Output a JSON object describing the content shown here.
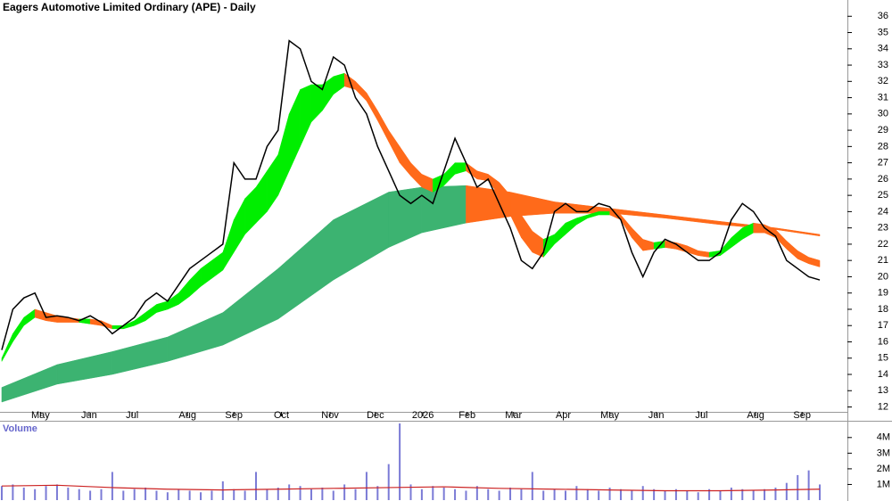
{
  "chart_data": [
    {
      "type": "line",
      "title": "Eagers Automotive Limited Ordinary (APE) - Daily",
      "x": [
        0,
        1,
        2,
        3,
        4,
        5,
        6,
        7,
        8,
        9,
        10,
        11,
        12,
        13,
        14,
        15,
        16,
        17,
        18,
        19,
        20,
        21,
        22,
        23,
        24,
        25,
        26,
        27,
        28,
        29,
        30,
        31,
        32,
        33,
        34,
        35,
        36,
        37,
        38,
        39,
        40,
        41,
        42,
        43,
        44,
        45,
        46,
        47,
        48,
        49,
        50,
        51,
        52,
        53,
        54,
        55,
        56,
        57,
        58,
        59,
        60,
        61,
        62,
        63,
        64,
        65,
        66,
        67,
        68,
        69,
        70,
        71,
        72,
        73,
        74
      ],
      "xlim": [
        -0.16,
        76.5
      ],
      "xticks": [
        {
          "value": 3.5,
          "label": "May"
        },
        {
          "value": 7.9,
          "label": "Jun"
        },
        {
          "value": 11.8,
          "label": "Jul"
        },
        {
          "value": 16.8,
          "label": "Aug"
        },
        {
          "value": 21,
          "label": "Sep"
        },
        {
          "value": 25.3,
          "label": "Oct"
        },
        {
          "value": 29.7,
          "label": "Nov"
        },
        {
          "value": 33.8,
          "label": "Dec"
        },
        {
          "value": 38.1,
          "label": "2026"
        },
        {
          "value": 42.1,
          "label": "Feb"
        },
        {
          "value": 46.3,
          "label": "Mar"
        },
        {
          "value": 50.8,
          "label": "Apr"
        },
        {
          "value": 55,
          "label": "May"
        },
        {
          "value": 59.2,
          "label": "Jun"
        },
        {
          "value": 63.3,
          "label": "Jul"
        },
        {
          "value": 68.2,
          "label": "Aug"
        },
        {
          "value": 72.4,
          "label": "Sep"
        }
      ],
      "ylim": [
        11.7,
        37
      ],
      "yticks": [
        12,
        13,
        14,
        15,
        16,
        17,
        18,
        19,
        20,
        21,
        22,
        23,
        24,
        25,
        26,
        27,
        28,
        29,
        30,
        31,
        32,
        33,
        34,
        35,
        36
      ],
      "series": [
        {
          "color": "#000000",
          "values": [
            15.5,
            18,
            18.7,
            19,
            17.5,
            17.6,
            17.5,
            17.3,
            17.6,
            17.2,
            16.5,
            17,
            17.5,
            18.5,
            19,
            18.5,
            19.5,
            20.5,
            21,
            21.5,
            22,
            27,
            26,
            26,
            28,
            29,
            34.5,
            34,
            32,
            31.5,
            33.5,
            33,
            31,
            30,
            28,
            26.5,
            25,
            24.5,
            25,
            24.5,
            26.5,
            28.5,
            27,
            25.5,
            26,
            24.5,
            23,
            21,
            20.5,
            21.5,
            24,
            24.5,
            24,
            24,
            24.5,
            24.3,
            23.5,
            21.5,
            20,
            21.5,
            22.3,
            22,
            21.5,
            21,
            21,
            21.5,
            23.5,
            24.5,
            24,
            23,
            22.5,
            21,
            20.5,
            20,
            19.8
          ]
        }
      ],
      "bands": [
        {
          "up_color": "#3cb371",
          "down_color": "#ff6a1a",
          "x": [
            0,
            5,
            10,
            15,
            20,
            25,
            30,
            35,
            38,
            42,
            46,
            50,
            55,
            60,
            65,
            70,
            74
          ],
          "upper": [
            13.2,
            14.6,
            15.4,
            16.3,
            17.8,
            20.5,
            23.5,
            25.2,
            25.5,
            25.6,
            25.2,
            24.6,
            24.2,
            23.8,
            23.4,
            23,
            22.6
          ],
          "lower": [
            12.3,
            13.4,
            14,
            14.8,
            15.8,
            17.4,
            19.8,
            21.8,
            22.7,
            23.3,
            23.7,
            23.9,
            23.9,
            23.6,
            23.2,
            22.9,
            22.5
          ]
        },
        {
          "up_color": "#00ee00",
          "down_color": "#ff6a1a",
          "x": [
            0,
            1,
            2,
            3,
            4,
            5,
            6,
            7,
            8,
            9,
            10,
            11,
            12,
            13,
            14,
            15,
            16,
            17,
            18,
            19,
            20,
            21,
            22,
            23,
            24,
            25,
            26,
            27,
            28,
            29,
            30,
            31,
            32,
            33,
            34,
            35,
            36,
            37,
            38,
            39,
            40,
            41,
            42,
            43,
            44,
            45,
            46,
            47,
            48,
            49,
            50,
            51,
            52,
            53,
            54,
            55,
            56,
            57,
            58,
            59,
            60,
            61,
            62,
            63,
            64,
            65,
            66,
            67,
            68,
            69,
            70,
            71,
            72,
            73,
            74
          ],
          "upper": [
            15,
            16.5,
            17.5,
            18,
            17.8,
            17.6,
            17.5,
            17.4,
            17.4,
            17.3,
            17,
            17,
            17.3,
            17.8,
            18.3,
            18.5,
            19,
            19.8,
            20.5,
            21,
            21.5,
            23.5,
            24.8,
            25.5,
            26.5,
            27.5,
            30,
            31.5,
            31.8,
            31.8,
            32.3,
            32.5,
            32,
            31.3,
            30.2,
            29,
            28,
            27,
            26.3,
            26,
            26.3,
            27,
            27,
            26.5,
            26.3,
            25.8,
            25,
            23.8,
            22.8,
            22.3,
            22.6,
            23.3,
            23.6,
            23.8,
            24,
            24,
            23.8,
            23,
            22.3,
            22.1,
            22.2,
            22.1,
            21.9,
            21.6,
            21.5,
            21.6,
            22.4,
            23,
            23.3,
            23.2,
            22.9,
            22.2,
            21.6,
            21.2,
            21
          ],
          "lower": [
            14.8,
            16,
            17,
            17.5,
            17.3,
            17.2,
            17.2,
            17.2,
            17.1,
            17,
            16.8,
            16.8,
            17,
            17.3,
            17.8,
            18,
            18.3,
            18.8,
            19.4,
            19.9,
            20.4,
            21.5,
            22.6,
            23.3,
            24,
            25,
            26.5,
            28,
            29.5,
            30.2,
            31.2,
            31.7,
            31.5,
            30.8,
            29.6,
            28.3,
            27,
            26.2,
            25.5,
            25.2,
            25.6,
            26.3,
            26.5,
            26,
            25.9,
            25,
            23.8,
            22.4,
            21.5,
            21.2,
            22,
            22.6,
            23.2,
            23.6,
            23.8,
            23.8,
            23.5,
            22.4,
            21.6,
            21.7,
            21.8,
            21.7,
            21.5,
            21.3,
            21.2,
            21.3,
            21.8,
            22.3,
            22.7,
            22.7,
            22.4,
            21.7,
            21.1,
            20.8,
            20.6
          ]
        }
      ]
    },
    {
      "type": "bar",
      "label": "Volume",
      "color": "#7b7bd6",
      "x": [
        0,
        1,
        2,
        3,
        4,
        5,
        6,
        7,
        8,
        9,
        10,
        11,
        12,
        13,
        14,
        15,
        16,
        17,
        18,
        19,
        20,
        21,
        22,
        23,
        24,
        25,
        26,
        27,
        28,
        29,
        30,
        31,
        32,
        33,
        34,
        35,
        36,
        37,
        38,
        39,
        40,
        41,
        42,
        43,
        44,
        45,
        46,
        47,
        48,
        49,
        50,
        51,
        52,
        53,
        54,
        55,
        56,
        57,
        58,
        59,
        60,
        61,
        62,
        63,
        64,
        65,
        66,
        67,
        68,
        69,
        70,
        71,
        72,
        73,
        74
      ],
      "values": [
        900000,
        1000000,
        800000,
        700000,
        900000,
        1000000,
        800000,
        700000,
        600000,
        700000,
        1800000,
        600000,
        700000,
        800000,
        600000,
        500000,
        700000,
        600000,
        500000,
        600000,
        1200000,
        700000,
        600000,
        1800000,
        700000,
        800000,
        1000000,
        900000,
        700000,
        800000,
        600000,
        1000000,
        700000,
        1800000,
        900000,
        2300000,
        4900000,
        1000000,
        700000,
        900000,
        800000,
        700000,
        600000,
        900000,
        700000,
        600000,
        800000,
        700000,
        1800000,
        600000,
        700000,
        600000,
        900000,
        700000,
        600000,
        800000,
        700000,
        600000,
        900000,
        700000,
        600000,
        700000,
        600000,
        500000,
        700000,
        600000,
        800000,
        700000,
        600000,
        700000,
        800000,
        1100000,
        1600000,
        1900000,
        1000000
      ],
      "series": [
        {
          "color": "#cc2222",
          "x": [
            0,
            5,
            10,
            15,
            20,
            25,
            30,
            35,
            40,
            45,
            50,
            55,
            60,
            65,
            70,
            74
          ],
          "values": [
            900000,
            950000,
            800000,
            700000,
            650000,
            700000,
            750000,
            800000,
            850000,
            750000,
            700000,
            650000,
            600000,
            600000,
            650000,
            700000
          ]
        }
      ],
      "ylim": [
        0,
        4900000
      ],
      "yticks": [
        {
          "value": 1000000,
          "label": "1M"
        },
        {
          "value": 2000000,
          "label": "2M"
        },
        {
          "value": 3000000,
          "label": "3M"
        },
        {
          "value": 4000000,
          "label": "4M"
        }
      ]
    }
  ]
}
